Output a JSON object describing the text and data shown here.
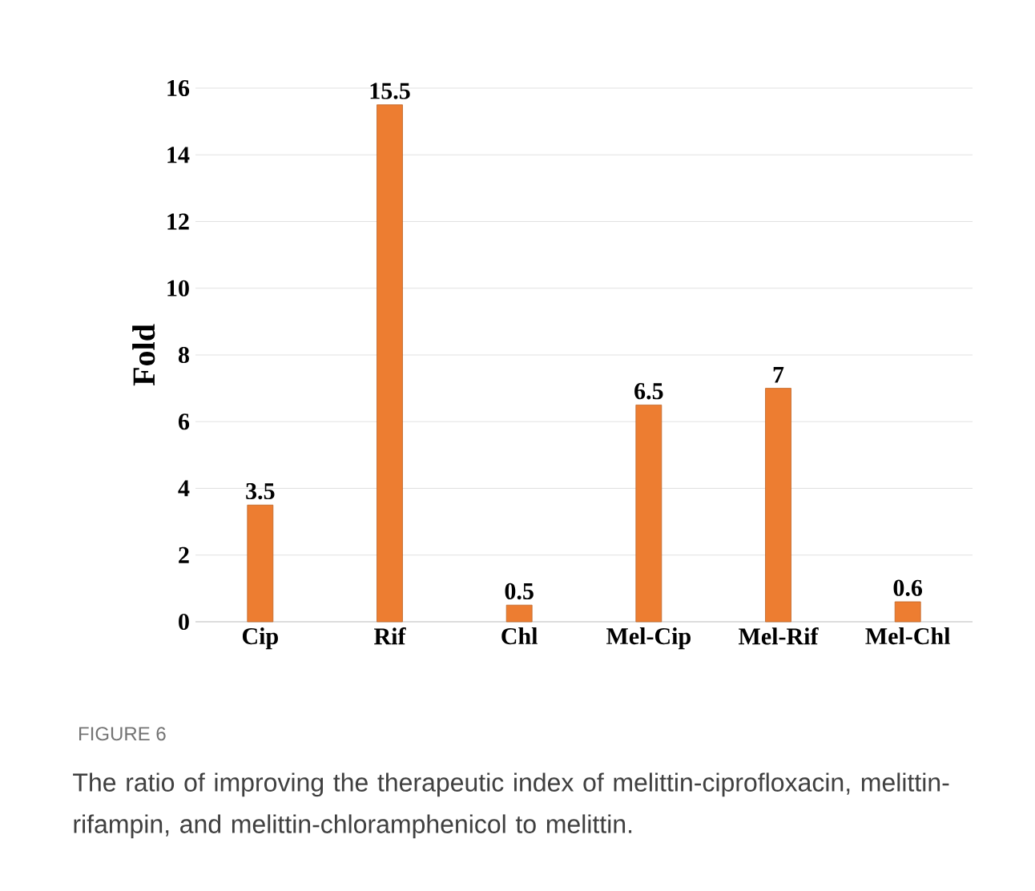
{
  "chart_data": {
    "type": "bar",
    "categories": [
      "Cip",
      "Rif",
      "Chl",
      "Mel-Cip",
      "Mel-Rif",
      "Mel-Chl"
    ],
    "values": [
      3.5,
      15.5,
      0.5,
      6.5,
      7,
      0.6
    ],
    "color": "#ed7d31",
    "ylabel": "Fold",
    "ylim": [
      0,
      16
    ],
    "yticks": [
      0,
      2,
      4,
      6,
      8,
      10,
      12,
      14,
      16
    ],
    "grid": "y",
    "data_labels": true,
    "annotations": [
      "FIGURE 6",
      "The ratio of improving the therapeutic index of melittin-ciprofloxacin, melittin-rifampin, and melittin-chloramphenicol to melittin."
    ]
  }
}
